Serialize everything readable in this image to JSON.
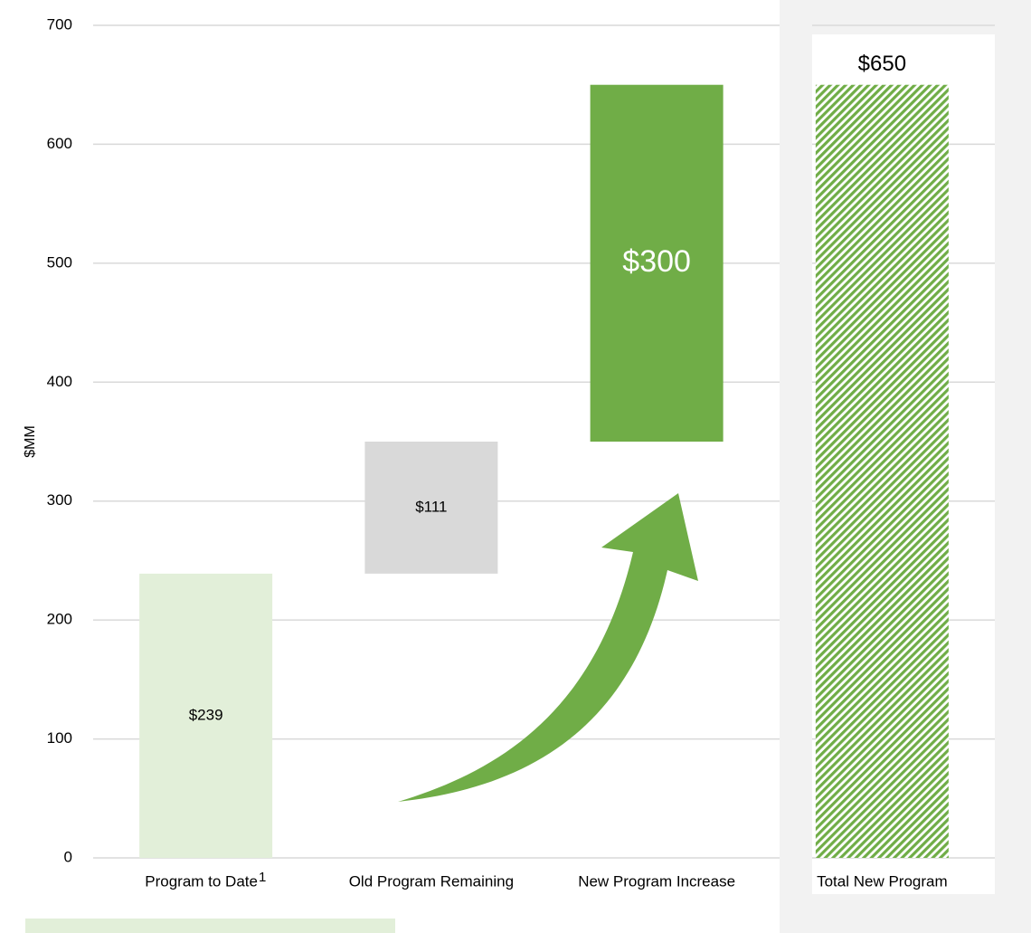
{
  "chart_data": {
    "type": "waterfall",
    "categories": [
      "Program to Date",
      "Old Program Remaining",
      "New Program Increase",
      "Total New Program"
    ],
    "category_footnotes": [
      "1",
      null,
      null,
      null
    ],
    "values": [
      239,
      111,
      300,
      650
    ],
    "value_labels": [
      "$239",
      "$111",
      "$300",
      "$650"
    ],
    "totals": [
      false,
      false,
      false,
      true
    ],
    "colors": [
      "#e2efd9",
      "#d9d9d9",
      "#70ad47",
      "#70ad47"
    ],
    "ylabel": "$MM",
    "ylim": [
      0,
      700
    ],
    "yticks": [
      0,
      100,
      200,
      300,
      400,
      500,
      600,
      700
    ],
    "grid": true
  }
}
